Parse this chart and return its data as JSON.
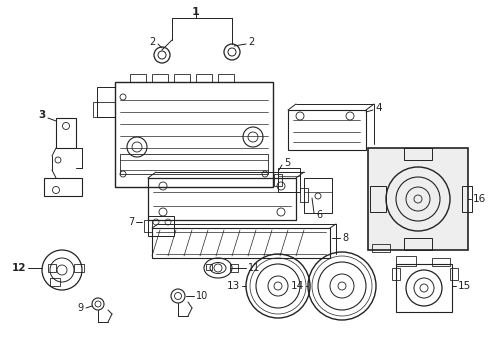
{
  "bg_color": "#ffffff",
  "lc": "#222222",
  "fig_w": 4.89,
  "fig_h": 3.6,
  "dpi": 100
}
